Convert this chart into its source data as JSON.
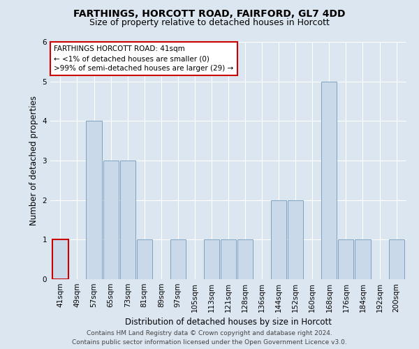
{
  "title": "FARTHINGS, HORCOTT ROAD, FAIRFORD, GL7 4DD",
  "subtitle": "Size of property relative to detached houses in Horcott",
  "xlabel": "Distribution of detached houses by size in Horcott",
  "ylabel": "Number of detached properties",
  "categories": [
    "41sqm",
    "49sqm",
    "57sqm",
    "65sqm",
    "73sqm",
    "81sqm",
    "89sqm",
    "97sqm",
    "105sqm",
    "113sqm",
    "121sqm",
    "128sqm",
    "136sqm",
    "144sqm",
    "152sqm",
    "160sqm",
    "168sqm",
    "176sqm",
    "184sqm",
    "192sqm",
    "200sqm"
  ],
  "values": [
    1,
    0,
    4,
    3,
    3,
    1,
    0,
    1,
    0,
    1,
    1,
    1,
    0,
    2,
    2,
    0,
    5,
    1,
    1,
    0,
    1
  ],
  "bar_color": "#cad9ea",
  "bar_edge_color": "#7098b8",
  "highlight_edge_color": "#cc0000",
  "ylim": [
    0,
    6
  ],
  "yticks": [
    0,
    1,
    2,
    3,
    4,
    5,
    6
  ],
  "annotation_title": "FARTHINGS HORCOTT ROAD: 41sqm",
  "annotation_line2": "← <1% of detached houses are smaller (0)",
  "annotation_line3": ">99% of semi-detached houses are larger (29) →",
  "annotation_box_color": "#ffffff",
  "annotation_border_color": "#cc0000",
  "background_color": "#dce6f0",
  "plot_background_color": "#dce6f0",
  "footer_line1": "Contains HM Land Registry data © Crown copyright and database right 2024.",
  "footer_line2": "Contains public sector information licensed under the Open Government Licence v3.0.",
  "title_fontsize": 10,
  "subtitle_fontsize": 9,
  "axis_label_fontsize": 8.5,
  "tick_fontsize": 7.5,
  "annotation_fontsize": 7.5,
  "footer_fontsize": 6.5
}
